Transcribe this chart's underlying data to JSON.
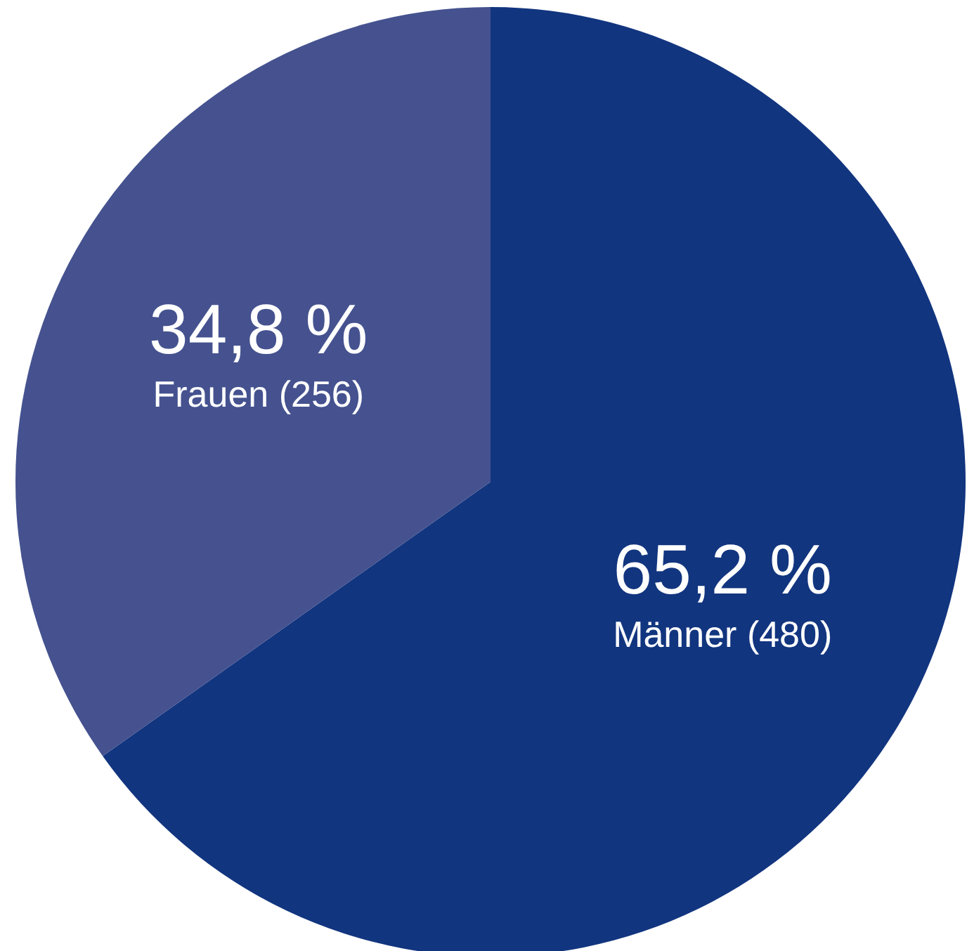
{
  "chart_data": {
    "type": "pie",
    "categories": [
      "Männer (480)",
      "Frauen (256)"
    ],
    "values": [
      65.2,
      34.8
    ],
    "value_labels": [
      "65,2 %",
      "34,8 %"
    ],
    "colors": [
      "#12357f",
      "#45528f"
    ]
  }
}
